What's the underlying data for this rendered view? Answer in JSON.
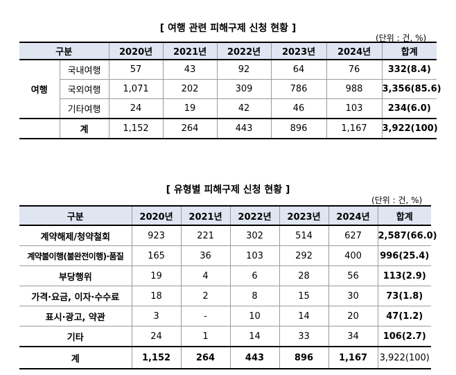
{
  "table1": {
    "title": "[ 여행 관련 피해구제 신청 현황 ]",
    "unit": "(단위 : 건, %)",
    "headers": [
      "구분",
      "2020년",
      "2021년",
      "2022년",
      "2023년",
      "2024년",
      "합계"
    ],
    "group_label": "여행",
    "rows": [
      {
        "label": "국내여행",
        "values": [
          "57",
          "43",
          "92",
          "64",
          "76"
        ],
        "total": "332(8.4)"
      },
      {
        "label": "국외여행",
        "values": [
          "1,071",
          "202",
          "309",
          "786",
          "988"
        ],
        "total": "3,356(85.6)"
      },
      {
        "label": "기타여행",
        "values": [
          "24",
          "19",
          "42",
          "46",
          "103"
        ],
        "total": "234(6.0)"
      },
      {
        "label": "계",
        "values": [
          "1,152",
          "264",
          "443",
          "896",
          "1,167"
        ],
        "total": "3,922(100)"
      }
    ]
  },
  "table2": {
    "title": "[ 유형별 피해구제 신청 현황 ]",
    "unit": "(단위 : 건, %)",
    "headers": [
      "구분",
      "2020년",
      "2021년",
      "2022년",
      "2023년",
      "2024년",
      "합계"
    ],
    "rows": [
      {
        "label": "계약해제/청약철회",
        "values": [
          "923",
          "221",
          "302",
          "514",
          "627"
        ],
        "total": "2,587(66.0)"
      },
      {
        "label": "계약불이행(불완전이행)·품질",
        "values": [
          "165",
          "36",
          "103",
          "292",
          "400"
        ],
        "total": "996(25.4)"
      },
      {
        "label": "부당행위",
        "values": [
          "19",
          "4",
          "6",
          "28",
          "56"
        ],
        "total": "113(2.9)"
      },
      {
        "label": "가격·요금, 이자·수수료",
        "values": [
          "18",
          "2",
          "8",
          "15",
          "30"
        ],
        "total": "73(1.8)"
      },
      {
        "label": "표시·광고, 약관",
        "values": [
          "3",
          "-",
          "10",
          "14",
          "20"
        ],
        "total": "47(1.2)"
      },
      {
        "label": "기타",
        "values": [
          "24",
          "1",
          "14",
          "33",
          "34"
        ],
        "total": "106(2.7)"
      },
      {
        "label": "계",
        "values": [
          "1,152",
          "264",
          "443",
          "896",
          "1,167"
        ],
        "total": "3,922(100)"
      }
    ]
  },
  "colors": {
    "header_bg": "#dfe5f1",
    "border": "#9a9a9a",
    "rule": "#000000"
  }
}
